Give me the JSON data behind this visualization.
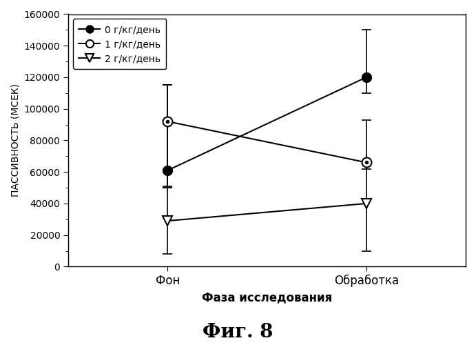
{
  "x_labels": [
    "Фон",
    "Обработка"
  ],
  "x_positions": [
    0,
    1
  ],
  "series": [
    {
      "label": "0 г/кг/день",
      "values": [
        61000,
        120000
      ],
      "yerr_minus": [
        10000,
        10000
      ],
      "yerr_plus": [
        54000,
        30000
      ],
      "marker": "o",
      "marker_fill": "black",
      "marker_size": 10,
      "linestyle": "-",
      "color": "black"
    },
    {
      "label": "1 г/кг/день",
      "values": [
        92000,
        66000
      ],
      "yerr_minus": [
        42000,
        4000
      ],
      "yerr_plus": [
        23000,
        27000
      ],
      "marker": "o",
      "marker_fill": "white",
      "marker_size": 10,
      "linestyle": "-",
      "color": "black"
    },
    {
      "label": "2 г/кг/день",
      "values": [
        29000,
        40000
      ],
      "yerr_minus": [
        21000,
        30000
      ],
      "yerr_plus": [
        21000,
        25000
      ],
      "marker": "v",
      "marker_fill": "white",
      "marker_size": 10,
      "linestyle": "-",
      "color": "black"
    }
  ],
  "ylabel": "ПАССИВНОСТЬ (МСЕК)",
  "xlabel": "Фаза исследования",
  "title": "Фиг. 8",
  "ylim": [
    0,
    160000
  ],
  "yticks": [
    0,
    20000,
    40000,
    60000,
    80000,
    100000,
    120000,
    140000,
    160000
  ],
  "background_color": "#ffffff",
  "fig_width": 6.91,
  "fig_height": 5.0,
  "dpi": 100
}
